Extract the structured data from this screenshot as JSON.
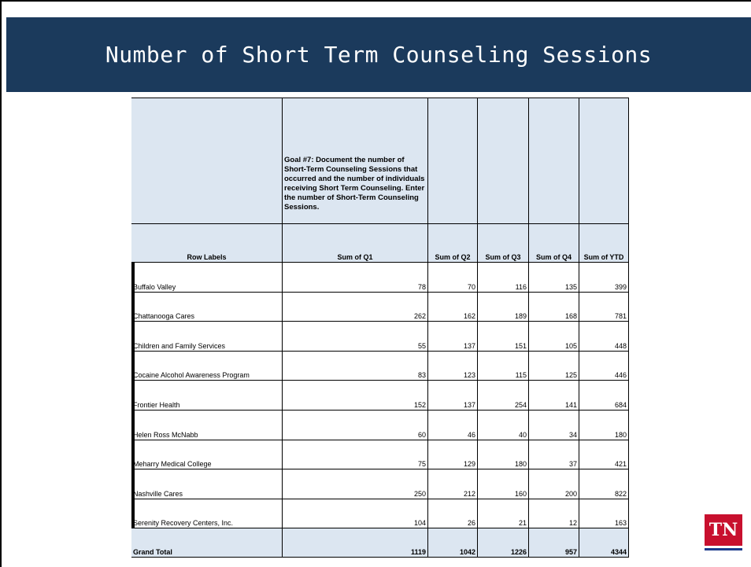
{
  "header": {
    "title": "Number of Short Term Counseling Sessions"
  },
  "table": {
    "goal": "Goal #7:  Document the number of Short-Term Counseling Sessions that occurred and the number of individuals receiving Short Term Counseling.  Enter the number of Short-Term Counseling Sessions.",
    "headers": [
      "Row Labels",
      "Sum of Q1",
      "Sum of Q2",
      "Sum of Q3",
      "Sum of Q4",
      "Sum of YTD"
    ],
    "rows": [
      [
        "Buffalo Valley",
        78,
        70,
        116,
        135,
        399
      ],
      [
        "Chattanooga Cares",
        262,
        162,
        189,
        168,
        781
      ],
      [
        "Children and Family Services",
        55,
        137,
        151,
        105,
        448
      ],
      [
        "Cocaine Alcohol Awareness Program",
        83,
        123,
        115,
        125,
        446
      ],
      [
        "Frontier Health",
        152,
        137,
        254,
        141,
        684
      ],
      [
        "Helen Ross McNabb",
        60,
        46,
        40,
        34,
        180
      ],
      [
        "Meharry Medical College",
        75,
        129,
        180,
        37,
        421
      ],
      [
        "Nashville Cares",
        250,
        212,
        160,
        200,
        822
      ],
      [
        "Serenity Recovery Centers, Inc.",
        104,
        26,
        21,
        12,
        163
      ]
    ],
    "total": [
      "Grand Total",
      1119,
      1042,
      1226,
      957,
      4344
    ]
  },
  "logo": "TN"
}
